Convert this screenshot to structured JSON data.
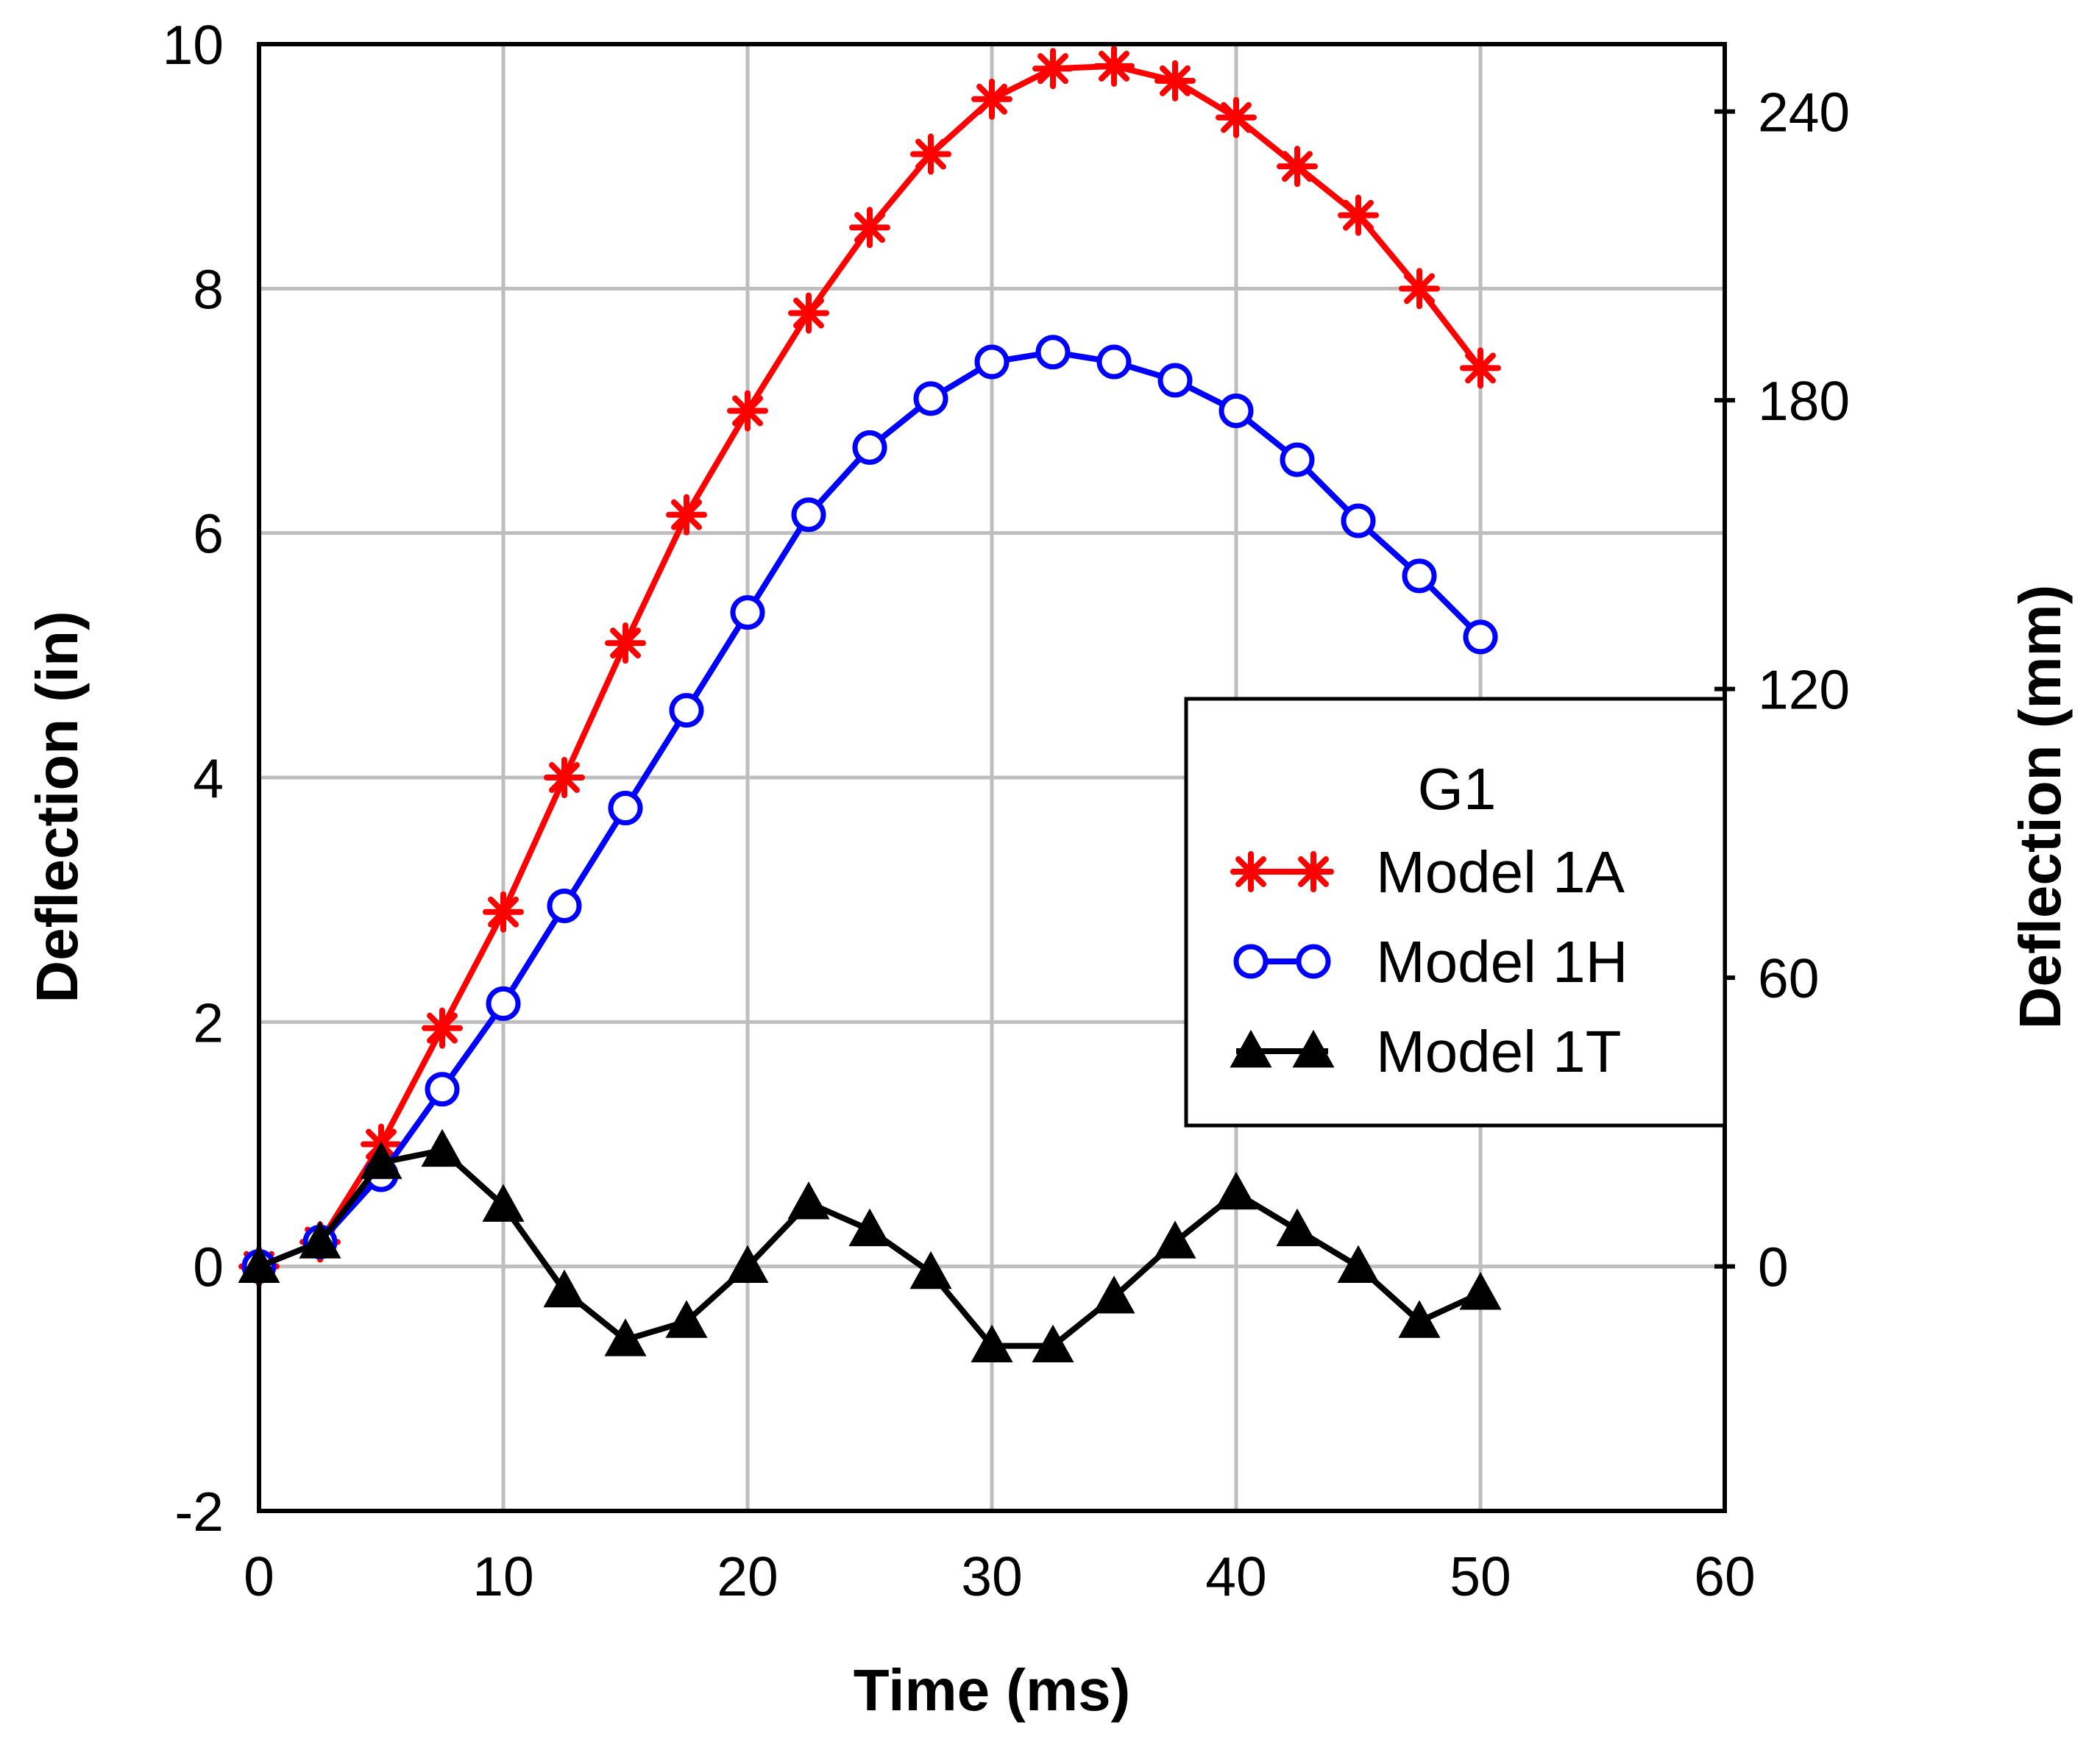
{
  "chart_data": {
    "type": "line",
    "xlabel": "Time (ms)",
    "ylabel": "Deflection (in)",
    "y2label": "Deflection (mm)",
    "xlim": [
      0,
      60
    ],
    "ylim": [
      -2,
      10
    ],
    "y2lim": [
      -50.8,
      254
    ],
    "x_ticks": [
      0,
      10,
      20,
      30,
      40,
      50,
      60
    ],
    "y_ticks": [
      -2,
      0,
      2,
      4,
      6,
      8,
      10
    ],
    "y2_ticks": [
      0,
      60,
      120,
      180,
      240
    ],
    "grid": true,
    "legend": {
      "title": "G1",
      "position": "right"
    },
    "x": [
      0,
      2.5,
      5,
      7.5,
      10,
      12.5,
      15,
      17.5,
      20,
      22.5,
      25,
      27.5,
      30,
      32.5,
      35,
      37.5,
      40,
      42.5,
      45,
      47.5,
      50
    ],
    "series": [
      {
        "name": "Model 1A",
        "color": "#ff0000",
        "marker": "asterisk",
        "values": [
          0,
          0.2,
          1.0,
          1.95,
          2.9,
          4.0,
          5.1,
          6.15,
          7.0,
          7.8,
          8.5,
          9.1,
          9.55,
          9.8,
          9.82,
          9.7,
          9.4,
          9.0,
          8.6,
          8.0,
          7.35
        ]
      },
      {
        "name": "Model 1H",
        "color": "#0000ff",
        "marker": "circle",
        "values": [
          0,
          0.2,
          0.75,
          1.45,
          2.15,
          2.95,
          3.75,
          4.55,
          5.35,
          6.15,
          6.7,
          7.1,
          7.4,
          7.48,
          7.4,
          7.25,
          7.0,
          6.6,
          6.1,
          5.65,
          5.15
        ]
      },
      {
        "name": "Model 1T",
        "color": "#000000",
        "marker": "triangle",
        "values": [
          0,
          0.2,
          0.85,
          0.95,
          0.5,
          -0.2,
          -0.6,
          -0.45,
          0,
          0.52,
          0.3,
          -0.05,
          -0.65,
          -0.65,
          -0.25,
          0.2,
          0.6,
          0.3,
          0,
          -0.45,
          -0.22
        ]
      }
    ]
  }
}
